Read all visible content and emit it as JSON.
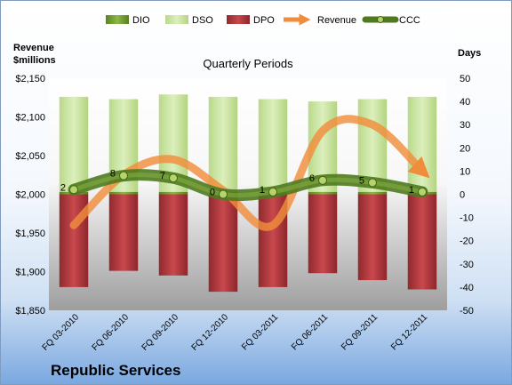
{
  "chart_data": {
    "type": "bar",
    "subtitle": "Quarterly Periods",
    "company": "Republic Services",
    "left_axis": {
      "title_line1": "Revenue",
      "title_line2": "$millions",
      "min": 1850,
      "max": 2150,
      "step": 50,
      "ticks": [
        "$2,150",
        "$2,100",
        "$2,050",
        "$2,000",
        "$1,950",
        "$1,900",
        "$1,850"
      ]
    },
    "right_axis": {
      "title": "Days",
      "min": -50,
      "max": 50,
      "step": 10,
      "ticks": [
        "50",
        "40",
        "30",
        "20",
        "10",
        "0",
        "-10",
        "-20",
        "-30",
        "-40",
        "-50"
      ]
    },
    "categories": [
      "FQ 03-2010",
      "FQ 06-2010",
      "FQ 09-2010",
      "FQ 12-2010",
      "FQ 03-2011",
      "FQ 06-2011",
      "FQ 09-2011",
      "FQ 12-2011"
    ],
    "series": [
      {
        "name": "DIO",
        "axis": "right",
        "values": [
          1,
          1,
          1,
          1,
          1,
          1,
          1,
          1
        ],
        "color": "#6e9b2c"
      },
      {
        "name": "DSO",
        "axis": "right",
        "values": [
          41,
          40,
          42,
          41,
          40,
          39,
          40,
          41
        ],
        "color": "#cfe6a6"
      },
      {
        "name": "DPO",
        "axis": "right",
        "values": [
          -40,
          -33,
          -35,
          -42,
          -40,
          -34,
          -37,
          -41
        ],
        "color": "#b5373d"
      },
      {
        "name": "Revenue",
        "axis": "left",
        "values": [
          1960,
          2025,
          2045,
          2005,
          1960,
          2082,
          2090,
          2030
        ],
        "color": "#f08d3c"
      },
      {
        "name": "CCC",
        "axis": "right",
        "values": [
          2,
          8,
          7,
          0,
          1,
          6,
          5,
          1
        ],
        "color": "#5f8a2a"
      }
    ],
    "data_labels": [
      "2",
      "8",
      "7",
      "0",
      "1",
      "6",
      "5",
      "1"
    ],
    "legend_position": "top"
  }
}
